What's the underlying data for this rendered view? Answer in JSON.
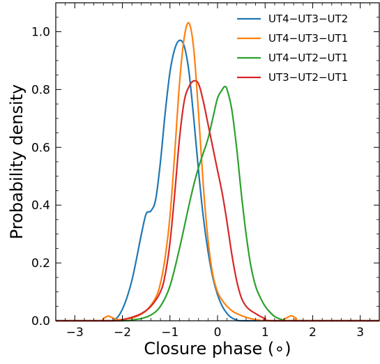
{
  "chart_data": {
    "type": "line",
    "xlabel": "Closure phase (∘)",
    "ylabel": "Probability density",
    "xlim": [
      -3.4,
      3.4
    ],
    "ylim": [
      0.0,
      1.1
    ],
    "xticks": [
      -3,
      -2,
      -1,
      0,
      1,
      2,
      3
    ],
    "xtick_labels": [
      "−3",
      "−2",
      "−1",
      "0",
      "1",
      "2",
      "3"
    ],
    "yticks": [
      0.0,
      0.2,
      0.4,
      0.6,
      0.8,
      1.0
    ],
    "ytick_labels": [
      "0.0",
      "0.2",
      "0.4",
      "0.6",
      "0.8",
      "1.0"
    ],
    "grid": false,
    "legend_position": "top-right",
    "series": [
      {
        "name": "UT4−UT3−UT2",
        "color": "#1f77b4",
        "x": [
          -3.4,
          -2.5,
          -2.2,
          -2.0,
          -1.8,
          -1.6,
          -1.5,
          -1.4,
          -1.3,
          -1.2,
          -1.1,
          -1.0,
          -0.9,
          -0.8,
          -0.7,
          -0.6,
          -0.5,
          -0.4,
          -0.3,
          -0.2,
          -0.1,
          0.0,
          0.1,
          0.2,
          0.3,
          0.4,
          0.5,
          1.0,
          3.4
        ],
        "y": [
          0.0,
          0.0,
          0.0,
          0.04,
          0.14,
          0.3,
          0.37,
          0.38,
          0.42,
          0.55,
          0.72,
          0.86,
          0.94,
          0.97,
          0.95,
          0.86,
          0.7,
          0.52,
          0.36,
          0.24,
          0.15,
          0.09,
          0.05,
          0.025,
          0.01,
          0.003,
          0.0,
          0.0,
          0.0
        ]
      },
      {
        "name": "UT4−UT3−UT1",
        "color": "#ff7f0e",
        "x": [
          -3.4,
          -2.5,
          -2.4,
          -2.3,
          -2.2,
          -2.1,
          -1.9,
          -1.7,
          -1.5,
          -1.3,
          -1.2,
          -1.1,
          -1.0,
          -0.9,
          -0.8,
          -0.7,
          -0.6,
          -0.5,
          -0.4,
          -0.3,
          -0.2,
          -0.1,
          0.0,
          0.1,
          0.2,
          0.3,
          0.4,
          0.6,
          0.8,
          1.0,
          1.3,
          1.45,
          1.55,
          1.65,
          1.8,
          3.4
        ],
        "y": [
          0.0,
          0.0,
          0.008,
          0.016,
          0.01,
          0.004,
          0.006,
          0.015,
          0.035,
          0.08,
          0.13,
          0.22,
          0.36,
          0.58,
          0.82,
          0.98,
          1.03,
          0.94,
          0.72,
          0.47,
          0.28,
          0.16,
          0.1,
          0.07,
          0.05,
          0.035,
          0.025,
          0.012,
          0.004,
          0.0,
          0.0,
          0.01,
          0.017,
          0.009,
          0.0,
          0.0
        ]
      },
      {
        "name": "UT4−UT2−UT1",
        "color": "#2ca02c",
        "x": [
          -3.4,
          -2.0,
          -1.8,
          -1.6,
          -1.4,
          -1.2,
          -1.0,
          -0.8,
          -0.6,
          -0.5,
          -0.4,
          -0.3,
          -0.2,
          -0.1,
          0.0,
          0.1,
          0.15,
          0.2,
          0.3,
          0.4,
          0.5,
          0.6,
          0.7,
          0.8,
          0.9,
          1.0,
          1.1,
          1.2,
          1.3,
          1.4,
          1.6,
          3.4
        ],
        "y": [
          0.0,
          0.0,
          0.003,
          0.008,
          0.02,
          0.05,
          0.12,
          0.25,
          0.4,
          0.47,
          0.53,
          0.58,
          0.63,
          0.7,
          0.77,
          0.8,
          0.81,
          0.8,
          0.73,
          0.6,
          0.44,
          0.3,
          0.19,
          0.12,
          0.08,
          0.05,
          0.03,
          0.015,
          0.007,
          0.002,
          0.0,
          0.0
        ]
      },
      {
        "name": "UT3−UT2−UT1",
        "color": "#d62728",
        "x": [
          -3.4,
          -2.2,
          -2.0,
          -1.8,
          -1.6,
          -1.4,
          -1.2,
          -1.1,
          -1.0,
          -0.9,
          -0.8,
          -0.7,
          -0.6,
          -0.5,
          -0.4,
          -0.3,
          -0.2,
          -0.1,
          0.0,
          0.1,
          0.2,
          0.3,
          0.4,
          0.5,
          0.6,
          0.7,
          0.8,
          0.9,
          1.0,
          1.2,
          3.4
        ],
        "y": [
          0.0,
          0.0,
          0.004,
          0.012,
          0.025,
          0.05,
          0.1,
          0.16,
          0.27,
          0.44,
          0.63,
          0.76,
          0.81,
          0.83,
          0.82,
          0.76,
          0.68,
          0.6,
          0.52,
          0.44,
          0.34,
          0.23,
          0.14,
          0.08,
          0.05,
          0.035,
          0.025,
          0.015,
          0.008,
          0.0,
          0.0
        ]
      }
    ]
  }
}
